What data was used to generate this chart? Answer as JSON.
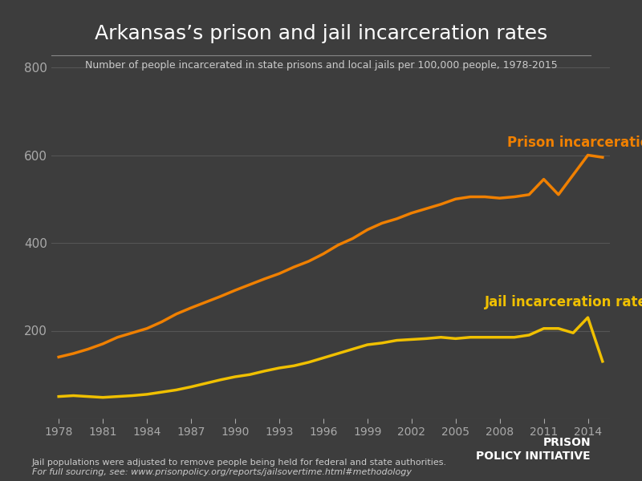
{
  "title": "Arkansas’s prison and jail incarceration rates",
  "subtitle": "Number of people incarcerated in state prisons and local jails per 100,000 people, 1978-2015",
  "background_color": "#3d3d3d",
  "title_color": "#ffffff",
  "subtitle_color": "#cccccc",
  "grid_color": "#555555",
  "tick_color": "#aaaaaa",
  "prison_color": "#f08000",
  "jail_color": "#f0c000",
  "prison_label": "Prison incarceration rate",
  "jail_label": "Jail incarceration rate",
  "xlabel": "",
  "ylabel": "",
  "ylim": [
    0,
    800
  ],
  "yticks": [
    0,
    200,
    400,
    600,
    800
  ],
  "xticks": [
    1978,
    1981,
    1984,
    1987,
    1990,
    1993,
    1996,
    1999,
    2002,
    2005,
    2008,
    2011,
    2014
  ],
  "footnote_line1": "Jail populations were adjusted to remove people being held for federal and state authorities.",
  "footnote_line2": "For full sourcing, see: www.prisonpolicy.org/reports/jailsovertime.html#methodology",
  "prison_years": [
    1978,
    1979,
    1980,
    1981,
    1982,
    1983,
    1984,
    1985,
    1986,
    1987,
    1988,
    1989,
    1990,
    1991,
    1992,
    1993,
    1994,
    1995,
    1996,
    1997,
    1998,
    1999,
    2000,
    2001,
    2002,
    2003,
    2004,
    2005,
    2006,
    2007,
    2008,
    2009,
    2010,
    2011,
    2012,
    2013,
    2014,
    2015
  ],
  "prison_values": [
    140,
    148,
    158,
    170,
    185,
    195,
    205,
    220,
    238,
    252,
    265,
    278,
    292,
    305,
    318,
    330,
    345,
    358,
    375,
    395,
    410,
    430,
    445,
    455,
    468,
    478,
    488,
    500,
    505,
    505,
    502,
    505,
    510,
    545,
    510,
    555,
    600,
    595
  ],
  "jail_years": [
    1978,
    1979,
    1980,
    1981,
    1982,
    1983,
    1984,
    1985,
    1986,
    1987,
    1988,
    1989,
    1990,
    1991,
    1992,
    1993,
    1994,
    1995,
    1996,
    1997,
    1998,
    1999,
    2000,
    2001,
    2002,
    2003,
    2004,
    2005,
    2006,
    2007,
    2008,
    2009,
    2010,
    2011,
    2012,
    2013,
    2014,
    2015
  ],
  "jail_values": [
    50,
    52,
    50,
    48,
    50,
    52,
    55,
    60,
    65,
    72,
    80,
    88,
    95,
    100,
    108,
    115,
    120,
    128,
    138,
    148,
    158,
    168,
    172,
    178,
    180,
    182,
    185,
    182,
    185,
    185,
    185,
    185,
    190,
    205,
    205,
    195,
    230,
    130
  ]
}
